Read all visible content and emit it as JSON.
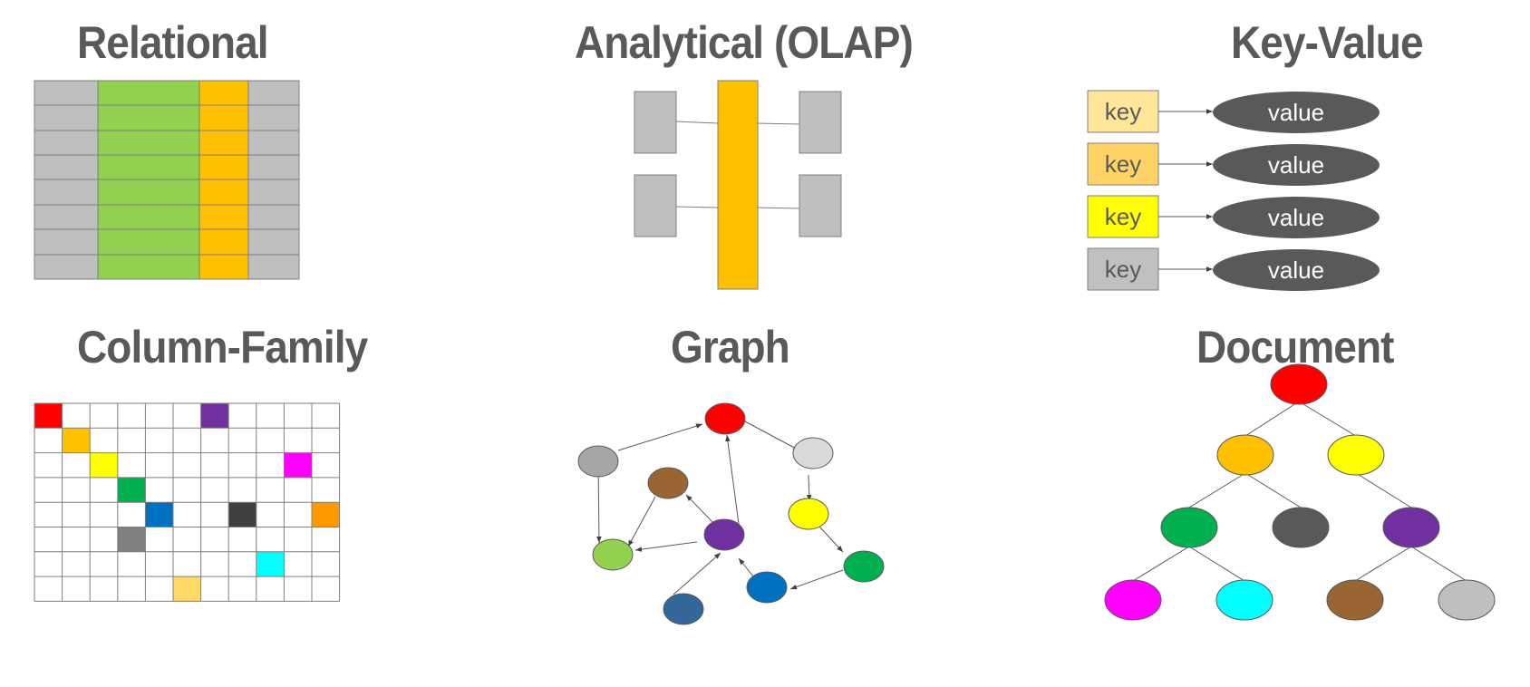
{
  "panels": {
    "relational": {
      "title": "Relational"
    },
    "olap": {
      "title": "Analytical (OLAP)"
    },
    "key_value": {
      "title": "Key-Value",
      "rows": [
        {
          "key": "key",
          "value": "value",
          "key_color": "#ffe699"
        },
        {
          "key": "key",
          "value": "value",
          "key_color": "#ffd265"
        },
        {
          "key": "key",
          "value": "value",
          "key_color": "#ffff00"
        },
        {
          "key": "key",
          "value": "value",
          "key_color": "#c0c0c0"
        }
      ],
      "value_color": "#58595b"
    },
    "column_family": {
      "title": "Column-Family"
    },
    "graph": {
      "title": "Graph"
    },
    "document": {
      "title": "Document"
    }
  },
  "colors": {
    "title": "#58595b",
    "gray_cell": "#bfbfbf",
    "green_column": "#92d050",
    "orange_column": "#ffc000"
  }
}
